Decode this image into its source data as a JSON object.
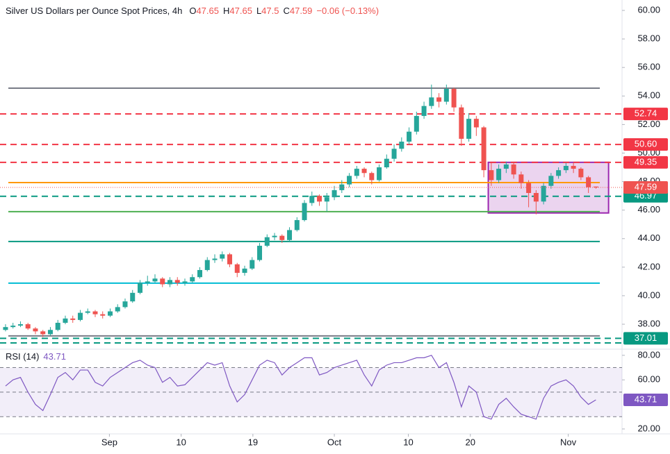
{
  "chart_data": {
    "type": "candlestick",
    "title": "Silver US Dollars per Ounce Spot Prices, 4h",
    "ohlc_letters": [
      "O",
      "H",
      "L",
      "C"
    ],
    "change": "−0.06 (−0.13%)",
    "open": [
      37.6,
      37.8,
      37.9,
      38.0,
      37.7,
      37.5,
      37.3,
      37.6,
      38.1,
      38.4,
      38.3,
      38.8,
      38.9,
      38.7,
      38.6,
      38.9,
      39.2,
      39.6,
      40.2,
      40.9,
      41.0,
      41.2,
      40.8,
      41.1,
      40.9,
      41.0,
      41.3,
      41.8,
      42.5,
      42.6,
      42.9,
      42.2,
      41.6,
      41.9,
      42.5,
      43.5,
      44.1,
      44.2,
      43.9,
      44.6,
      45.3,
      46.5,
      47.0,
      46.6,
      46.9,
      47.4,
      47.8,
      48.4,
      48.9,
      48.6,
      48.1,
      49.0,
      49.6,
      50.3,
      50.8,
      51.5,
      52.6,
      53.3,
      53.9,
      53.6,
      54.5,
      53.2,
      51.0,
      52.4,
      51.8,
      48.8,
      48.1,
      48.9,
      49.2,
      48.5,
      47.9,
      47.2,
      46.6,
      47.7,
      48.4,
      48.8,
      49.1,
      48.9,
      48.3,
      47.65
    ],
    "high": [
      38.0,
      38.1,
      38.2,
      38.1,
      37.8,
      37.6,
      37.8,
      38.3,
      38.6,
      38.6,
      39.0,
      39.1,
      39.0,
      38.9,
      39.1,
      39.4,
      39.8,
      40.4,
      41.1,
      41.4,
      41.5,
      41.3,
      41.3,
      41.3,
      41.2,
      41.5,
      42.0,
      42.7,
      42.9,
      43.1,
      43.0,
      42.3,
      42.1,
      42.7,
      43.7,
      44.3,
      44.4,
      44.3,
      44.8,
      45.5,
      46.7,
      47.3,
      47.1,
      47.2,
      47.7,
      48.1,
      48.6,
      49.1,
      49.0,
      48.7,
      49.2,
      49.9,
      50.6,
      51.1,
      51.8,
      52.9,
      53.6,
      54.8,
      54.2,
      54.8,
      54.6,
      53.4,
      52.8,
      52.6,
      51.9,
      49.3,
      49.2,
      49.4,
      49.3,
      48.7,
      48.1,
      47.4,
      47.9,
      48.6,
      49.0,
      49.3,
      49.3,
      49.0,
      48.4,
      47.65
    ],
    "low": [
      37.5,
      37.7,
      37.8,
      37.6,
      37.3,
      37.1,
      37.2,
      37.5,
      38.0,
      38.1,
      38.2,
      38.7,
      38.5,
      38.4,
      38.5,
      38.8,
      39.1,
      39.5,
      40.1,
      40.7,
      40.9,
      40.6,
      40.6,
      40.7,
      40.7,
      40.9,
      41.2,
      41.7,
      42.3,
      42.4,
      42.0,
      41.3,
      41.4,
      41.8,
      42.4,
      43.4,
      43.9,
      43.7,
      43.8,
      44.5,
      45.2,
      46.3,
      46.3,
      45.9,
      46.7,
      47.2,
      47.6,
      48.2,
      48.3,
      47.8,
      48.0,
      48.9,
      49.4,
      50.1,
      50.6,
      51.3,
      52.4,
      53.1,
      53.2,
      53.4,
      52.9,
      50.5,
      50.8,
      51.2,
      48.3,
      47.7,
      47.9,
      48.6,
      48.2,
      47.5,
      46.2,
      45.7,
      46.4,
      47.5,
      48.2,
      48.6,
      48.6,
      48.1,
      47.2,
      47.5
    ],
    "close": [
      37.8,
      37.9,
      38.0,
      37.7,
      37.5,
      37.3,
      37.6,
      38.1,
      38.4,
      38.3,
      38.8,
      38.9,
      38.7,
      38.6,
      38.9,
      39.2,
      39.6,
      40.2,
      40.9,
      41.0,
      41.2,
      40.8,
      41.1,
      40.9,
      41.0,
      41.3,
      41.8,
      42.5,
      42.6,
      42.9,
      42.2,
      41.6,
      41.9,
      42.5,
      43.5,
      44.1,
      44.2,
      43.9,
      44.6,
      45.3,
      46.5,
      47.0,
      46.6,
      46.9,
      47.4,
      47.8,
      48.4,
      48.9,
      48.6,
      48.1,
      49.0,
      49.6,
      50.3,
      50.8,
      51.5,
      52.6,
      53.3,
      53.9,
      53.6,
      54.5,
      53.2,
      51.0,
      52.4,
      51.8,
      48.8,
      48.1,
      48.9,
      49.2,
      48.5,
      47.9,
      47.2,
      46.6,
      47.7,
      48.4,
      48.8,
      49.1,
      48.9,
      48.3,
      47.6,
      47.59
    ],
    "up_color": "#26a69a",
    "down_color": "#ef5350",
    "xlim": [
      -0.74,
      82.5
    ],
    "xticks": [
      {
        "value": 13.9,
        "label": "Sep"
      },
      {
        "value": 23.5,
        "label": "10"
      },
      {
        "value": 33.1,
        "label": "19"
      },
      {
        "value": 44,
        "label": "Oct"
      },
      {
        "value": 53.9,
        "label": "10"
      },
      {
        "value": 62.2,
        "label": "20"
      },
      {
        "value": 75.3,
        "label": "Nov"
      }
    ],
    "ylim": [
      36.25,
      60.73
    ],
    "yticks": [
      {
        "value": 60,
        "label": "60.00"
      },
      {
        "value": 58,
        "label": "58.00"
      },
      {
        "value": 56,
        "label": "56.00"
      },
      {
        "value": 54,
        "label": "54.00"
      },
      {
        "value": 52,
        "label": "52.00"
      },
      {
        "value": 50,
        "label": "50.00"
      },
      {
        "value": 48,
        "label": "48.00"
      },
      {
        "value": 46,
        "label": "46.00"
      },
      {
        "value": 44,
        "label": "44.00"
      },
      {
        "value": 42,
        "label": "42.00"
      },
      {
        "value": 40,
        "label": "40.00"
      },
      {
        "value": 38,
        "label": "38.00"
      }
    ],
    "levels": [
      {
        "value": 54.55,
        "color": "#787b86",
        "style": "solid"
      },
      {
        "value": 52.74,
        "color": "#f23645",
        "style": "dashed",
        "label": "52.74"
      },
      {
        "value": 50.6,
        "color": "#f23645",
        "style": "dashed",
        "label": "50.60"
      },
      {
        "value": 49.35,
        "color": "#f23645",
        "style": "dashed",
        "label": "49.35"
      },
      {
        "value": 47.93,
        "color": "#ff9800",
        "style": "solid"
      },
      {
        "value": 46.97,
        "color": "#089981",
        "style": "dashed",
        "label": "46.97"
      },
      {
        "value": 45.89,
        "color": "#4caf50",
        "style": "solid"
      },
      {
        "value": 43.8,
        "color": "#089981",
        "style": "solid"
      },
      {
        "value": 40.88,
        "color": "#00bcd4",
        "style": "solid"
      },
      {
        "value": 37.18,
        "color": "#787b86",
        "style": "solid"
      },
      {
        "value": 37.01,
        "color": "#089981",
        "style": "dashed",
        "label": "37.01"
      },
      {
        "value": 36.69,
        "color": "#089981",
        "style": "dashed"
      }
    ],
    "box": {
      "x": [
        64.6,
        80.7
      ],
      "y": [
        45.8,
        49.35
      ],
      "color": "#9c27b0"
    },
    "rsi": {
      "title": "RSI (14)",
      "color": "#7e57c2",
      "values": [
        55,
        60,
        62,
        50,
        40,
        35,
        48,
        62,
        66,
        60,
        68,
        68,
        58,
        55,
        62,
        66,
        70,
        74,
        76,
        72,
        70,
        58,
        62,
        55,
        56,
        62,
        68,
        74,
        72,
        74,
        55,
        42,
        48,
        60,
        72,
        76,
        74,
        64,
        70,
        74,
        78,
        78,
        64,
        66,
        70,
        72,
        74,
        76,
        64,
        55,
        68,
        72,
        74,
        74,
        76,
        78,
        78,
        80,
        70,
        74,
        58,
        38,
        55,
        50,
        30,
        28,
        40,
        45,
        38,
        32,
        30,
        28,
        45,
        55,
        58,
        60,
        55,
        46,
        40,
        43.71
      ],
      "ylim": [
        16,
        85
      ],
      "levels": [
        70,
        50,
        30
      ],
      "yticks": [
        {
          "value": 80,
          "label": "80.00"
        },
        {
          "value": 60,
          "label": "60.00"
        },
        {
          "value": 20,
          "label": "20.00"
        }
      ]
    }
  }
}
